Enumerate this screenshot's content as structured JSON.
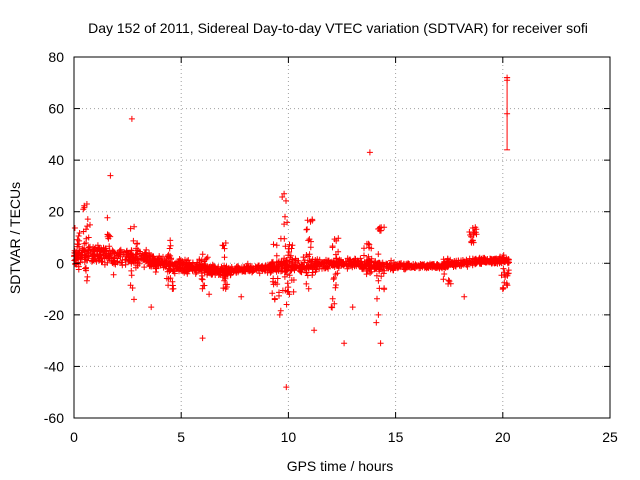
{
  "chart_data": {
    "type": "scatter",
    "title": "Day 152 of 2011, Sidereal Day-to-day VTEC variation (SDTVAR) for receiver sofi",
    "xlabel": "GPS time / hours",
    "ylabel": "SDTVAR / TECUs",
    "xlim": [
      0,
      25
    ],
    "ylim": [
      -60,
      80
    ],
    "xticks": [
      0,
      5,
      10,
      15,
      20,
      25
    ],
    "yticks": [
      -60,
      -40,
      -20,
      0,
      20,
      40,
      60,
      80
    ],
    "grid": true,
    "marker": "+",
    "color": "#ff0000",
    "band": {
      "description": "dense scatter of points",
      "x_range": [
        0,
        20.3
      ],
      "profile": [
        {
          "x": 0.0,
          "center": 3,
          "spread": 4
        },
        {
          "x": 1.0,
          "center": 3.5,
          "spread": 4
        },
        {
          "x": 2.0,
          "center": 3,
          "spread": 4
        },
        {
          "x": 3.0,
          "center": 2,
          "spread": 3.5
        },
        {
          "x": 4.0,
          "center": 0,
          "spread": 3
        },
        {
          "x": 5.0,
          "center": -1,
          "spread": 2.5
        },
        {
          "x": 6.0,
          "center": -2,
          "spread": 2.5
        },
        {
          "x": 7.0,
          "center": -3,
          "spread": 2
        },
        {
          "x": 8.0,
          "center": -2,
          "spread": 1.5
        },
        {
          "x": 9.0,
          "center": -2,
          "spread": 2
        },
        {
          "x": 10.0,
          "center": -1,
          "spread": 3
        },
        {
          "x": 11.0,
          "center": -1,
          "spread": 3
        },
        {
          "x": 12.0,
          "center": 0,
          "spread": 2
        },
        {
          "x": 13.0,
          "center": 0,
          "spread": 2
        },
        {
          "x": 14.0,
          "center": -1,
          "spread": 2
        },
        {
          "x": 15.0,
          "center": -1,
          "spread": 1.5
        },
        {
          "x": 16.0,
          "center": -1,
          "spread": 1
        },
        {
          "x": 17.0,
          "center": -1,
          "spread": 1
        },
        {
          "x": 18.0,
          "center": 0,
          "spread": 1.5
        },
        {
          "x": 19.0,
          "center": 1,
          "spread": 1.5
        },
        {
          "x": 20.0,
          "center": 1,
          "spread": 1.5
        },
        {
          "x": 20.3,
          "center": 1,
          "spread": 1.5
        }
      ]
    },
    "spikes": [
      {
        "x": 0.1,
        "y_range": [
          -5,
          15
        ]
      },
      {
        "x": 0.6,
        "y_range": [
          -8,
          23
        ]
      },
      {
        "x": 1.7,
        "y_range": [
          -8,
          18
        ]
      },
      {
        "x": 2.8,
        "y_range": [
          -14,
          19
        ]
      },
      {
        "x": 4.5,
        "y_range": [
          -10,
          9
        ]
      },
      {
        "x": 6.1,
        "y_range": [
          -10,
          5
        ]
      },
      {
        "x": 7.0,
        "y_range": [
          -10,
          11
        ]
      },
      {
        "x": 9.4,
        "y_range": [
          -15,
          8
        ]
      },
      {
        "x": 9.8,
        "y_range": [
          -22,
          26
        ]
      },
      {
        "x": 10.1,
        "y_range": [
          -12,
          8
        ]
      },
      {
        "x": 11.0,
        "y_range": [
          -10,
          19
        ]
      },
      {
        "x": 12.2,
        "y_range": [
          -18,
          12
        ]
      },
      {
        "x": 13.7,
        "y_range": [
          -8,
          10
        ]
      },
      {
        "x": 14.3,
        "y_range": [
          -16,
          16
        ]
      },
      {
        "x": 17.4,
        "y_range": [
          -8,
          2
        ]
      },
      {
        "x": 18.6,
        "y_range": [
          8,
          14
        ]
      },
      {
        "x": 20.1,
        "y_range": [
          -10,
          4
        ]
      }
    ],
    "outliers": [
      {
        "x": 2.7,
        "y": 56
      },
      {
        "x": 1.7,
        "y": 34
      },
      {
        "x": 0.6,
        "y": 23
      },
      {
        "x": 2.8,
        "y": -14
      },
      {
        "x": 3.6,
        "y": -17
      },
      {
        "x": 6.0,
        "y": -29
      },
      {
        "x": 6.3,
        "y": -12
      },
      {
        "x": 7.8,
        "y": -13
      },
      {
        "x": 9.8,
        "y": 27
      },
      {
        "x": 9.9,
        "y": -48
      },
      {
        "x": 9.6,
        "y": -20
      },
      {
        "x": 11.2,
        "y": -26
      },
      {
        "x": 12.0,
        "y": -17
      },
      {
        "x": 12.6,
        "y": -31
      },
      {
        "x": 13.0,
        "y": -17
      },
      {
        "x": 13.8,
        "y": 43
      },
      {
        "x": 14.1,
        "y": -23
      },
      {
        "x": 14.3,
        "y": -31
      },
      {
        "x": 14.2,
        "y": -20
      },
      {
        "x": 18.2,
        "y": -13
      },
      {
        "x": 20.0,
        "y": -10
      }
    ],
    "error_bar": {
      "x": 20.2,
      "y_low": 44,
      "y_center": 58,
      "y_high": 72,
      "markers": [
        71,
        72,
        58
      ]
    }
  }
}
